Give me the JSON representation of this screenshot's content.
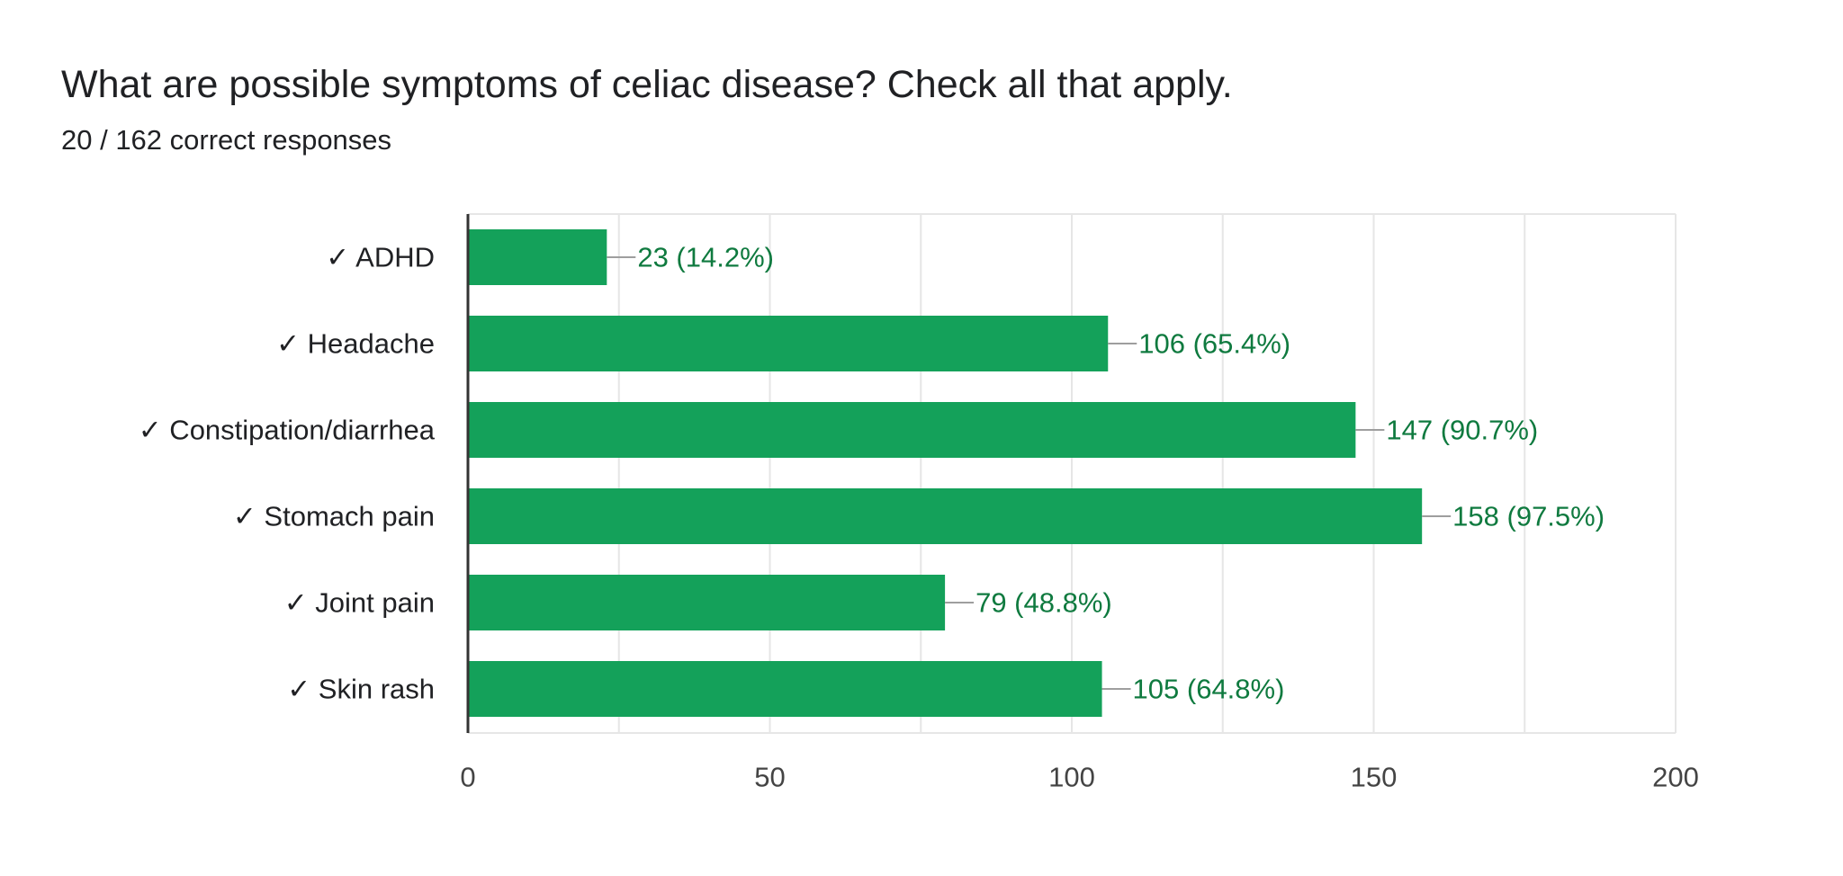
{
  "question": {
    "title": "What are possible symptoms of celiac disease? Check all that apply.",
    "subtitle": "20 / 162 correct responses"
  },
  "colors": {
    "bar": "#14a15a",
    "data_label": "#0f7a3f",
    "grid": "#e6e6e6",
    "axis": "#333333",
    "connector": "#9e9e9e"
  },
  "chart_data": {
    "type": "bar",
    "orientation": "horizontal",
    "categories": [
      "ADHD",
      "Headache",
      "Constipation/diarrhea",
      "Stomach pain",
      "Joint pain",
      "Skin rash"
    ],
    "category_marker": "✓",
    "values": [
      23,
      106,
      147,
      158,
      79,
      105
    ],
    "data_labels": [
      "23 (14.2%)",
      "106 (65.4%)",
      "147 (90.7%)",
      "158 (97.5%)",
      "79 (48.8%)",
      "105 (64.8%)"
    ],
    "xlim": [
      0,
      200
    ],
    "xticks": [
      0,
      50,
      100,
      150,
      200
    ],
    "grid": true,
    "legend": false
  }
}
